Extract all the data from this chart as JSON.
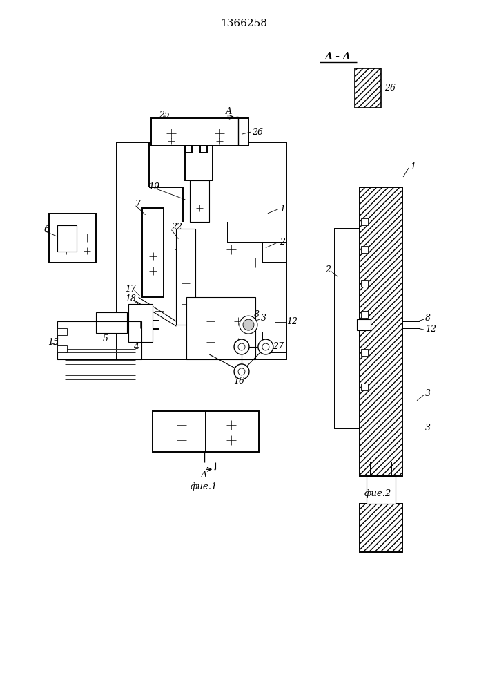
{
  "title": "1366258",
  "fig_label1": "фие.1",
  "fig_label2": "фие.2",
  "section_label": "А - А",
  "bg_color": "#ffffff",
  "line_color": "#000000",
  "title_fontsize": 11,
  "label_fontsize": 9
}
